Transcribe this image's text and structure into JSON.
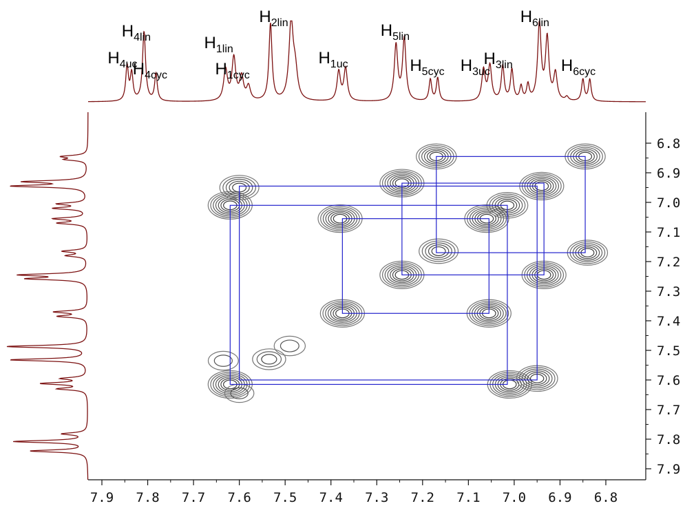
{
  "chart_data": {
    "type": "2d-nmr-cosy",
    "x_axis": {
      "range": [
        7.93,
        6.72
      ],
      "reversed": true,
      "ticks": [
        7.9,
        7.8,
        7.7,
        7.6,
        7.5,
        7.4,
        7.3,
        7.2,
        7.1,
        7.0,
        6.9,
        6.8
      ],
      "tick_labels": [
        "7.9",
        "7.8",
        "7.7",
        "7.6",
        "7.5",
        "7.4",
        "7.3",
        "7.2",
        "7.1",
        "7.0",
        "6.9",
        "6.8"
      ]
    },
    "y_axis": {
      "range": [
        6.76,
        7.93
      ],
      "ticks": [
        6.8,
        6.9,
        7.0,
        7.1,
        7.2,
        7.3,
        7.4,
        7.5,
        7.6,
        7.7,
        7.8,
        7.9
      ],
      "tick_labels": [
        "6.8",
        "6.9",
        "7.0",
        "7.1",
        "7.2",
        "7.3",
        "7.4",
        "7.5",
        "7.6",
        "7.7",
        "7.8",
        "7.9"
      ]
    },
    "peak_labels": [
      {
        "main": "H",
        "sub": "4uc",
        "ppm": 7.84
      },
      {
        "main": "H",
        "sub": "4lin",
        "ppm": 7.81
      },
      {
        "main": "H",
        "sub": "4cyc",
        "ppm": 7.78
      },
      {
        "main": "H",
        "sub": "1lin",
        "ppm": 7.63
      },
      {
        "main": "H",
        "sub": "1cyc",
        "ppm": 7.6
      },
      {
        "main": "H",
        "sub": "2lin",
        "ppm": 7.51
      },
      {
        "main": "H",
        "sub": "1uc",
        "ppm": 7.38
      },
      {
        "main": "H",
        "sub": "5lin",
        "ppm": 7.245
      },
      {
        "main": "H",
        "sub": "5cyc",
        "ppm": 7.175
      },
      {
        "main": "H",
        "sub": "3uc",
        "ppm": 7.07
      },
      {
        "main": "H",
        "sub": "3lin",
        "ppm": 7.02
      },
      {
        "main": "H",
        "sub": "6lin",
        "ppm": 6.94
      },
      {
        "main": "H",
        "sub": "6cyc",
        "ppm": 6.845
      }
    ],
    "spectrum_peaks": [
      {
        "ppm": 7.845,
        "h": 0.45,
        "w": 0.0035
      },
      {
        "ppm": 7.835,
        "h": 0.35,
        "w": 0.0035
      },
      {
        "ppm": 7.808,
        "h": 0.9,
        "w": 0.004
      },
      {
        "ppm": 7.782,
        "h": 0.35,
        "w": 0.0035
      },
      {
        "ppm": 7.63,
        "h": 0.4,
        "w": 0.005
      },
      {
        "ppm": 7.612,
        "h": 0.55,
        "w": 0.005
      },
      {
        "ppm": 7.595,
        "h": 0.3,
        "w": 0.005
      },
      {
        "ppm": 7.58,
        "h": 0.18,
        "w": 0.005
      },
      {
        "ppm": 7.532,
        "h": 1.0,
        "w": 0.004
      },
      {
        "ppm": 7.487,
        "h": 1.0,
        "w": 0.0055
      },
      {
        "ppm": 7.478,
        "h": 0.35,
        "w": 0.006
      },
      {
        "ppm": 7.383,
        "h": 0.38,
        "w": 0.0045
      },
      {
        "ppm": 7.368,
        "h": 0.42,
        "w": 0.0045
      },
      {
        "ppm": 7.258,
        "h": 0.72,
        "w": 0.0045
      },
      {
        "ppm": 7.24,
        "h": 0.8,
        "w": 0.0045
      },
      {
        "ppm": 7.183,
        "h": 0.28,
        "w": 0.0035
      },
      {
        "ppm": 7.167,
        "h": 0.3,
        "w": 0.0035
      },
      {
        "ppm": 7.067,
        "h": 0.4,
        "w": 0.0045
      },
      {
        "ppm": 7.053,
        "h": 0.45,
        "w": 0.0045
      },
      {
        "ppm": 7.025,
        "h": 0.45,
        "w": 0.0038
      },
      {
        "ppm": 7.005,
        "h": 0.4,
        "w": 0.0038
      },
      {
        "ppm": 6.985,
        "h": 0.18,
        "w": 0.0035
      },
      {
        "ppm": 6.97,
        "h": 0.2,
        "w": 0.0035
      },
      {
        "ppm": 6.945,
        "h": 1.0,
        "w": 0.0045
      },
      {
        "ppm": 6.928,
        "h": 0.8,
        "w": 0.0045
      },
      {
        "ppm": 6.91,
        "h": 0.35,
        "w": 0.0045
      },
      {
        "ppm": 6.885,
        "h": 0.05,
        "w": 0.004
      },
      {
        "ppm": 6.85,
        "h": 0.28,
        "w": 0.0035
      },
      {
        "ppm": 6.835,
        "h": 0.28,
        "w": 0.0035
      }
    ],
    "cross_peaks": [
      {
        "x": 7.62,
        "y": 7.01,
        "s": 1.0
      },
      {
        "x": 7.6,
        "y": 6.95,
        "s": 0.75
      },
      {
        "x": 7.38,
        "y": 7.055,
        "s": 1.0
      },
      {
        "x": 7.375,
        "y": 7.375,
        "s": 1.0
      },
      {
        "x": 7.245,
        "y": 6.935,
        "s": 1.0
      },
      {
        "x": 7.245,
        "y": 7.245,
        "s": 1.0
      },
      {
        "x": 7.17,
        "y": 6.845,
        "s": 0.8
      },
      {
        "x": 7.165,
        "y": 7.165,
        "s": 0.75
      },
      {
        "x": 7.06,
        "y": 7.055,
        "s": 1.0
      },
      {
        "x": 7.055,
        "y": 7.375,
        "s": 1.0
      },
      {
        "x": 7.015,
        "y": 7.01,
        "s": 0.85
      },
      {
        "x": 6.94,
        "y": 6.945,
        "s": 1.0
      },
      {
        "x": 6.935,
        "y": 7.245,
        "s": 1.0
      },
      {
        "x": 6.845,
        "y": 6.845,
        "s": 0.8
      },
      {
        "x": 6.84,
        "y": 7.17,
        "s": 0.8
      },
      {
        "x": 7.62,
        "y": 7.615,
        "s": 1.0
      },
      {
        "x": 7.01,
        "y": 7.615,
        "s": 1.0
      },
      {
        "x": 6.95,
        "y": 7.595,
        "s": 0.85
      },
      {
        "x": 7.535,
        "y": 7.53,
        "s": 0.45
      },
      {
        "x": 7.49,
        "y": 7.485,
        "s": 0.35
      },
      {
        "x": 7.635,
        "y": 7.535,
        "s": 0.3
      },
      {
        "x": 7.6,
        "y": 7.645,
        "s": 0.25
      }
    ],
    "projection_peaks": [
      {
        "ppm": 6.845,
        "h": 0.3
      },
      {
        "ppm": 6.855,
        "h": 0.25
      },
      {
        "ppm": 6.945,
        "h": 0.9
      },
      {
        "ppm": 6.93,
        "h": 0.75
      },
      {
        "ppm": 7.005,
        "h": 0.35
      },
      {
        "ppm": 7.02,
        "h": 0.4
      },
      {
        "ppm": 7.055,
        "h": 0.4
      },
      {
        "ppm": 7.07,
        "h": 0.35
      },
      {
        "ppm": 7.165,
        "h": 0.3
      },
      {
        "ppm": 7.18,
        "h": 0.25
      },
      {
        "ppm": 7.245,
        "h": 0.8
      },
      {
        "ppm": 7.258,
        "h": 0.7
      },
      {
        "ppm": 7.37,
        "h": 0.4
      },
      {
        "ppm": 7.385,
        "h": 0.35
      },
      {
        "ppm": 7.487,
        "h": 1.0
      },
      {
        "ppm": 7.532,
        "h": 0.95
      },
      {
        "ppm": 7.595,
        "h": 0.3
      },
      {
        "ppm": 7.612,
        "h": 0.55
      },
      {
        "ppm": 7.63,
        "h": 0.35
      },
      {
        "ppm": 7.782,
        "h": 0.3
      },
      {
        "ppm": 7.808,
        "h": 0.9
      },
      {
        "ppm": 7.84,
        "h": 0.7
      }
    ],
    "connectivity_boxes": [
      {
        "x1": 7.62,
        "x2": 7.015,
        "y1": 7.01,
        "y2": 7.615
      },
      {
        "x1": 7.6,
        "x2": 6.95,
        "y1": 6.945,
        "y2": 7.6
      },
      {
        "x1": 7.375,
        "x2": 7.055,
        "y1": 7.055,
        "y2": 7.375
      },
      {
        "x1": 7.245,
        "x2": 6.935,
        "y1": 6.935,
        "y2": 7.245
      },
      {
        "x1": 7.17,
        "x2": 6.845,
        "y1": 6.845,
        "y2": 7.17
      }
    ],
    "colors": {
      "spectrum": "#7b1010",
      "contour": "#505050",
      "boxes": "#2222cc",
      "axis": "#111111"
    }
  }
}
